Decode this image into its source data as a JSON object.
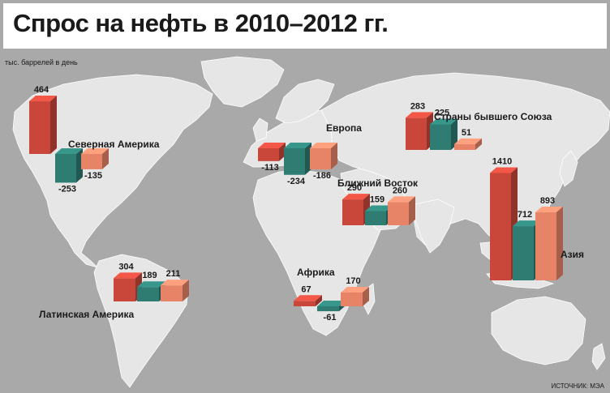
{
  "title": "Спрос на нефть в 2010–2012 гг.",
  "unit_label": "тыс. баррелей в день",
  "source": "ИСТОЧНИК: МЭА",
  "colors": {
    "series1": "#c8473a",
    "series2": "#2e7c72",
    "series3": "#e78468",
    "land": "#e6e6e6",
    "ocean": "#a9a9aa"
  },
  "chart_data": {
    "type": "bar",
    "title": "Спрос на нефть в 2010–2012 гг.",
    "ylabel": "тыс. баррелей в день",
    "regions": [
      {
        "name": "Северная Америка",
        "values": [
          464,
          -253,
          -135
        ],
        "labels": [
          "464",
          "-253",
          "-135"
        ]
      },
      {
        "name": "Европа",
        "values": [
          -113,
          -234,
          -186
        ],
        "labels": [
          "-113",
          "-234",
          "-186"
        ]
      },
      {
        "name": "Страны бывшего Союза",
        "values": [
          283,
          225,
          51
        ],
        "labels": [
          "283",
          "225",
          "51"
        ]
      },
      {
        "name": "Ближний Восток",
        "values": [
          290,
          159,
          260
        ],
        "labels": [
          "290",
          "159",
          "260"
        ]
      },
      {
        "name": "Азия",
        "values": [
          1410,
          712,
          893
        ],
        "labels": [
          "1410",
          "712",
          "893"
        ]
      },
      {
        "name": "Латинская Америка",
        "values": [
          304,
          189,
          211
        ],
        "labels": [
          "304",
          "189",
          "211"
        ]
      },
      {
        "name": "Африка",
        "values": [
          67,
          -61,
          170
        ],
        "labels": [
          "67",
          "-61",
          "170"
        ]
      }
    ]
  }
}
